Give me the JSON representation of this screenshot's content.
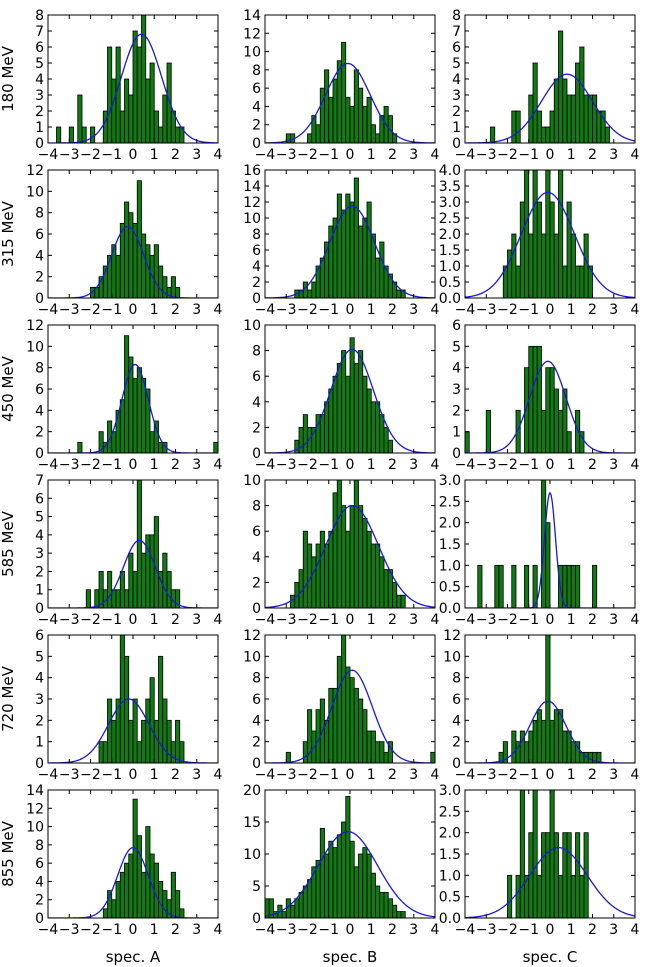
{
  "colors": {
    "bar_fill": "#127a12",
    "bar_edge": "#000000",
    "fit_line": "#1a1ad9",
    "axes": "#000000"
  },
  "figure": {
    "row_labels": [
      "180 MeV",
      "315 MeV",
      "450 MeV",
      "585 MeV",
      "720 MeV",
      "855 MeV"
    ],
    "column_labels": [
      "spec. A",
      "spec. B",
      "spec. C"
    ]
  },
  "chart_data": [
    {
      "type": "bar",
      "title": "180 MeV / spec. A",
      "xlim": [
        -4,
        4
      ],
      "ylim": [
        0,
        8
      ],
      "yticks": [
        0,
        1,
        2,
        3,
        4,
        5,
        6,
        7,
        8
      ],
      "bin_start": -4.0,
      "bin_width": 0.2,
      "values": [
        0,
        0,
        1,
        0,
        0,
        1,
        0,
        3,
        1,
        0,
        1,
        0,
        0,
        2,
        6,
        4,
        6,
        2,
        4,
        3,
        7,
        6,
        8,
        4,
        5,
        2,
        1,
        3,
        5,
        2,
        1,
        1,
        0,
        0,
        0,
        0,
        0,
        0,
        0,
        0
      ],
      "fit": {
        "mu": 0.4,
        "sigma": 0.95,
        "amp": 6.8
      }
    },
    {
      "type": "bar",
      "title": "180 MeV / spec. B",
      "xlim": [
        -4,
        4
      ],
      "ylim": [
        0,
        14
      ],
      "yticks": [
        0,
        2,
        4,
        6,
        8,
        10,
        12,
        14
      ],
      "bin_start": -4.0,
      "bin_width": 0.2,
      "values": [
        0,
        0,
        0,
        0,
        0,
        1,
        1,
        0,
        0,
        0,
        1,
        3,
        2,
        6,
        8,
        5,
        7,
        9,
        11,
        5,
        4,
        8,
        6,
        4,
        5,
        2,
        1,
        3,
        4,
        3,
        1,
        0,
        0,
        0,
        0,
        0,
        0,
        0,
        0,
        0
      ],
      "fit": {
        "mu": -0.1,
        "sigma": 1.05,
        "amp": 8.7
      }
    },
    {
      "type": "bar",
      "title": "180 MeV / spec. C",
      "xlim": [
        -4,
        4
      ],
      "ylim": [
        0,
        8
      ],
      "yticks": [
        0,
        1,
        2,
        3,
        4,
        5,
        6,
        7,
        8
      ],
      "bin_start": -4.0,
      "bin_width": 0.2,
      "values": [
        0,
        0,
        0,
        0,
        0,
        0,
        1,
        0,
        0,
        0,
        0,
        2,
        2,
        0,
        0,
        3,
        5,
        2,
        1,
        1,
        2,
        4,
        7,
        4,
        3,
        3,
        5,
        6,
        3,
        3,
        3,
        2,
        2,
        1,
        0,
        0,
        0,
        0,
        0,
        0
      ],
      "fit": {
        "mu": 0.8,
        "sigma": 1.2,
        "amp": 4.3
      }
    },
    {
      "type": "bar",
      "title": "315 MeV / spec. A",
      "xlim": [
        -4,
        4
      ],
      "ylim": [
        0,
        12
      ],
      "yticks": [
        0,
        2,
        4,
        6,
        8,
        10,
        12
      ],
      "bin_start": -4.0,
      "bin_width": 0.2,
      "values": [
        0,
        0,
        0,
        0,
        0,
        0,
        0,
        0,
        0,
        0,
        1,
        1,
        2,
        3,
        4,
        5,
        4,
        7,
        9,
        8,
        7,
        11,
        6,
        5,
        4,
        5,
        3,
        2,
        1,
        2,
        1,
        0,
        0,
        0,
        0,
        0,
        0,
        0,
        0,
        0
      ],
      "fit": {
        "mu": -0.25,
        "sigma": 0.75,
        "amp": 6.7
      }
    },
    {
      "type": "bar",
      "title": "315 MeV / spec. B",
      "xlim": [
        -4,
        4
      ],
      "ylim": [
        0,
        16
      ],
      "yticks": [
        0,
        2,
        4,
        6,
        8,
        10,
        12,
        14,
        16
      ],
      "bin_start": -4.0,
      "bin_width": 0.2,
      "values": [
        0,
        0,
        0,
        0,
        0,
        0,
        0,
        1,
        1,
        2,
        1,
        2,
        4,
        5,
        7,
        9,
        10,
        13,
        11,
        13,
        12,
        15,
        9,
        10,
        12,
        8,
        5,
        7,
        4,
        3,
        2,
        1,
        1,
        0,
        0,
        0,
        0,
        0,
        0,
        0
      ],
      "fit": {
        "mu": 0.1,
        "sigma": 1.05,
        "amp": 11.5
      }
    },
    {
      "type": "bar",
      "title": "315 MeV / spec. C",
      "xlim": [
        -4,
        4
      ],
      "ylim": [
        0,
        4
      ],
      "yticks": [
        0.0,
        0.5,
        1.0,
        1.5,
        2.0,
        2.5,
        3.0,
        3.5,
        4.0
      ],
      "bin_start": -2.2,
      "bin_width": 0.2,
      "values": [
        1,
        1.5,
        2,
        1,
        3,
        4,
        2,
        4,
        3,
        2,
        4,
        3,
        2,
        4,
        1,
        3,
        2,
        1,
        1,
        2,
        1
      ],
      "fit": {
        "mu": -0.1,
        "sigma": 1.25,
        "amp": 3.3
      }
    },
    {
      "type": "bar",
      "title": "450 MeV / spec. A",
      "xlim": [
        -4,
        4
      ],
      "ylim": [
        0,
        12
      ],
      "yticks": [
        0,
        2,
        4,
        6,
        8,
        10,
        12
      ],
      "bin_start": -4.0,
      "bin_width": 0.2,
      "values": [
        0,
        0,
        0,
        0,
        0,
        0,
        0,
        1,
        0,
        0,
        0,
        0,
        2,
        1,
        3,
        2,
        4,
        5,
        11,
        9,
        7,
        8,
        7,
        6,
        2,
        3,
        1,
        1,
        0,
        0,
        0,
        0,
        0,
        0,
        0,
        0,
        0,
        0,
        0,
        1
      ],
      "fit": {
        "mu": 0.1,
        "sigma": 0.62,
        "amp": 8.3
      }
    },
    {
      "type": "bar",
      "title": "450 MeV / spec. B",
      "xlim": [
        -4,
        4
      ],
      "ylim": [
        0,
        10
      ],
      "yticks": [
        0,
        2,
        4,
        6,
        8,
        10
      ],
      "bin_start": -4.0,
      "bin_width": 0.2,
      "values": [
        0,
        0,
        0,
        0,
        0,
        0,
        0,
        1,
        2,
        3,
        2,
        2,
        3,
        3,
        4,
        5,
        6,
        7,
        8,
        6,
        9,
        7,
        8,
        6,
        5,
        4,
        4,
        3,
        2,
        1,
        0,
        0,
        0,
        0,
        0,
        0,
        0,
        0,
        0,
        0
      ],
      "fit": {
        "mu": 0.1,
        "sigma": 1.0,
        "amp": 8.1
      }
    },
    {
      "type": "bar",
      "title": "450 MeV / spec. C",
      "xlim": [
        -4,
        4
      ],
      "ylim": [
        0,
        6
      ],
      "yticks": [
        0,
        1,
        2,
        3,
        4,
        5,
        6
      ],
      "bin_start": -4.0,
      "bin_width": 0.2,
      "values": [
        1,
        0,
        0,
        0,
        0,
        2,
        0,
        0,
        0,
        0,
        0,
        0,
        2,
        0,
        4,
        5,
        5,
        5,
        2,
        4,
        4,
        3,
        2,
        3,
        1,
        0,
        2,
        1,
        0,
        0,
        0,
        0,
        0,
        0,
        0,
        0,
        0,
        0,
        0,
        0
      ],
      "fit": {
        "mu": -0.1,
        "sigma": 0.85,
        "amp": 4.3
      }
    },
    {
      "type": "bar",
      "title": "585 MeV / spec. A",
      "xlim": [
        -4,
        4
      ],
      "ylim": [
        0,
        7
      ],
      "yticks": [
        0,
        1,
        2,
        3,
        4,
        5,
        6,
        7
      ],
      "bin_start": -4.0,
      "bin_width": 0.2,
      "values": [
        0,
        0,
        0,
        0,
        0,
        0,
        0,
        0,
        0,
        1,
        0,
        1,
        2,
        1,
        2,
        1,
        1,
        2,
        1,
        3,
        2,
        7,
        3,
        4,
        4,
        5,
        2,
        3,
        2,
        1,
        1,
        0,
        0,
        0,
        0,
        0,
        0,
        0,
        0,
        0
      ],
      "fit": {
        "mu": 0.3,
        "sigma": 0.75,
        "amp": 3.7
      }
    },
    {
      "type": "bar",
      "title": "585 MeV / spec. B",
      "xlim": [
        -4,
        4
      ],
      "ylim": [
        0,
        10
      ],
      "yticks": [
        0,
        2,
        4,
        6,
        8,
        10
      ],
      "bin_start": -4.0,
      "bin_width": 0.2,
      "values": [
        0,
        0,
        0,
        0,
        0,
        0,
        1,
        2,
        3,
        6,
        5,
        4,
        5,
        6,
        5,
        6,
        9,
        10,
        8,
        6,
        8,
        10,
        8,
        7,
        6,
        5,
        5,
        4,
        3,
        3,
        2,
        1,
        1,
        0,
        0,
        0,
        0,
        0,
        0,
        0
      ],
      "fit": {
        "mu": 0.1,
        "sigma": 1.25,
        "amp": 8.0
      }
    },
    {
      "type": "bar",
      "title": "585 MeV / spec. C",
      "xlim": [
        -4,
        4
      ],
      "ylim": [
        0,
        3
      ],
      "yticks": [
        0.0,
        0.5,
        1.0,
        1.5,
        2.0,
        2.5,
        3.0
      ],
      "bin_start": -4.0,
      "bin_width": 0.2,
      "values": [
        0,
        0,
        0,
        1,
        0,
        0,
        0,
        1,
        1,
        0,
        0,
        1,
        0,
        0,
        1,
        0,
        1,
        0,
        3,
        2,
        0,
        0,
        1,
        1,
        1,
        1,
        1,
        0,
        0,
        0,
        1,
        0,
        0,
        0,
        0,
        0,
        0,
        0,
        0,
        0
      ],
      "fit": {
        "mu": 0.0,
        "sigma": 0.26,
        "amp": 2.7
      }
    },
    {
      "type": "bar",
      "title": "720 MeV / spec. A",
      "xlim": [
        -4,
        4
      ],
      "ylim": [
        0,
        6
      ],
      "yticks": [
        0,
        1,
        2,
        3,
        4,
        5,
        6
      ],
      "bin_start": -4.0,
      "bin_width": 0.2,
      "values": [
        0,
        0,
        0,
        0,
        0,
        0,
        0,
        0,
        0,
        0,
        0,
        0,
        1,
        1,
        3,
        2,
        3,
        6,
        5,
        2,
        3,
        1,
        2,
        3,
        4,
        2,
        5,
        3,
        2,
        1,
        2,
        1,
        0,
        0,
        0,
        0,
        0,
        0,
        0,
        0
      ],
      "fit": {
        "mu": -0.2,
        "sigma": 0.95,
        "amp": 3.0
      }
    },
    {
      "type": "bar",
      "title": "720 MeV / spec. B",
      "xlim": [
        -4,
        4
      ],
      "ylim": [
        0,
        12
      ],
      "yticks": [
        0,
        2,
        4,
        6,
        8,
        10,
        12
      ],
      "bin_start": -4.0,
      "bin_width": 0.2,
      "values": [
        0,
        0,
        0,
        0,
        0,
        1,
        0,
        0,
        0,
        2,
        5,
        3,
        5,
        6,
        4,
        7,
        7,
        10,
        12,
        9,
        8,
        7,
        6,
        5,
        3,
        3,
        2,
        2,
        1,
        2,
        0,
        0,
        0,
        0,
        0,
        0,
        0,
        0,
        0,
        1
      ],
      "fit": {
        "mu": 0.1,
        "sigma": 0.95,
        "amp": 8.7
      }
    },
    {
      "type": "bar",
      "title": "720 MeV / spec. C",
      "xlim": [
        -4,
        4
      ],
      "ylim": [
        0,
        12
      ],
      "yticks": [
        0,
        2,
        4,
        6,
        8,
        10,
        12
      ],
      "bin_start": -4.0,
      "bin_width": 0.2,
      "values": [
        0,
        0,
        0,
        0,
        0,
        0,
        0,
        0,
        1,
        2,
        0,
        3,
        2,
        3,
        2,
        3,
        4,
        5,
        4,
        12,
        4,
        5,
        5,
        3,
        3,
        2,
        2,
        1,
        1,
        1,
        1,
        1,
        0,
        0,
        0,
        0,
        0,
        0,
        0,
        0
      ],
      "fit": {
        "mu": -0.1,
        "sigma": 0.85,
        "amp": 5.8
      }
    },
    {
      "type": "bar",
      "title": "855 MeV / spec. A",
      "xlim": [
        -4,
        4
      ],
      "ylim": [
        0,
        14
      ],
      "yticks": [
        0,
        2,
        4,
        6,
        8,
        10,
        12,
        14
      ],
      "bin_start": -4.0,
      "bin_width": 0.2,
      "values": [
        0,
        0,
        0,
        0,
        0,
        0,
        0,
        0,
        0,
        0,
        0,
        0,
        0,
        1,
        3,
        2,
        4,
        5,
        6,
        7,
        13,
        9,
        5,
        10,
        7,
        6,
        4,
        3,
        2,
        5,
        3,
        1,
        0,
        0,
        0,
        0,
        0,
        0,
        0,
        0
      ],
      "fit": {
        "mu": 0.0,
        "sigma": 0.72,
        "amp": 7.7
      }
    },
    {
      "type": "bar",
      "title": "855 MeV / spec. B",
      "xlim": [
        -4,
        4
      ],
      "ylim": [
        0,
        20
      ],
      "yticks": [
        0,
        5,
        10,
        15,
        20
      ],
      "bin_start": -4.0,
      "bin_width": 0.2,
      "values": [
        3,
        3,
        1,
        2,
        1,
        3,
        2,
        3,
        4,
        5,
        6,
        8,
        9,
        14,
        10,
        12,
        11,
        13,
        15,
        19,
        12,
        8,
        10,
        11,
        10,
        7,
        5,
        4,
        4,
        3,
        2,
        1,
        1,
        0,
        0,
        0,
        0,
        0,
        0,
        0
      ],
      "fit": {
        "mu": -0.1,
        "sigma": 1.4,
        "amp": 13.5
      }
    },
    {
      "type": "bar",
      "title": "855 MeV / spec. C",
      "xlim": [
        -4,
        4
      ],
      "ylim": [
        0,
        3
      ],
      "yticks": [
        0.0,
        0.5,
        1.0,
        1.5,
        2.0,
        2.5,
        3.0
      ],
      "bin_start": -4.0,
      "bin_width": 0.2,
      "values": [
        0,
        0,
        0,
        0,
        0,
        0,
        0,
        0,
        0,
        0,
        1,
        0,
        1,
        3,
        1,
        2,
        3,
        1,
        2,
        2,
        3,
        2,
        1,
        2,
        2,
        1,
        2,
        1,
        2,
        0,
        0,
        0,
        0,
        0,
        0,
        0,
        0,
        0,
        0,
        0
      ],
      "fit": {
        "mu": 0.4,
        "sigma": 1.35,
        "amp": 1.65
      }
    }
  ]
}
